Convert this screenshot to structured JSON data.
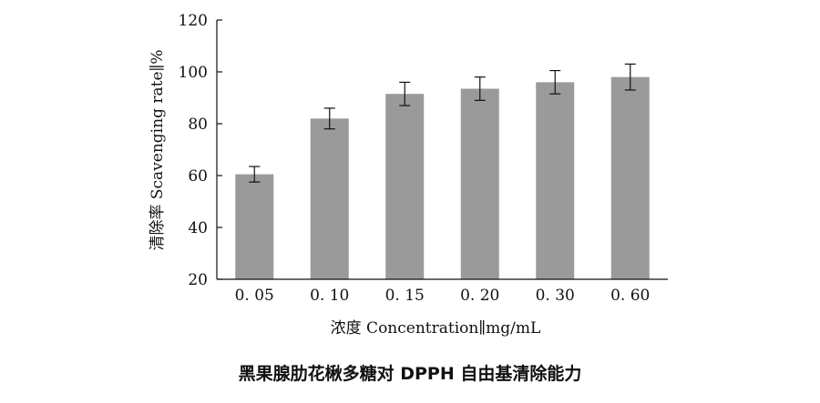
{
  "chart_data": {
    "type": "bar",
    "title": "黑果腺肋花楸多糖对 DPPH 自由基清除能力",
    "xlabel": "浓度 Concentration∥mg/mL",
    "ylabel": "清除率 Scavenging rate∥%",
    "categories": [
      "0. 05",
      "0. 10",
      "0. 15",
      "0. 20",
      "0. 30",
      "0. 60"
    ],
    "values": [
      60.5,
      82,
      91.5,
      93.5,
      96,
      98
    ],
    "errors": [
      3,
      4,
      4.5,
      4.5,
      4.5,
      5
    ],
    "ylim": [
      20,
      120
    ],
    "yticks": [
      20,
      40,
      60,
      80,
      100,
      120
    ],
    "grid": false,
    "bar_color": "#9a9a9a",
    "error_bars": true
  }
}
